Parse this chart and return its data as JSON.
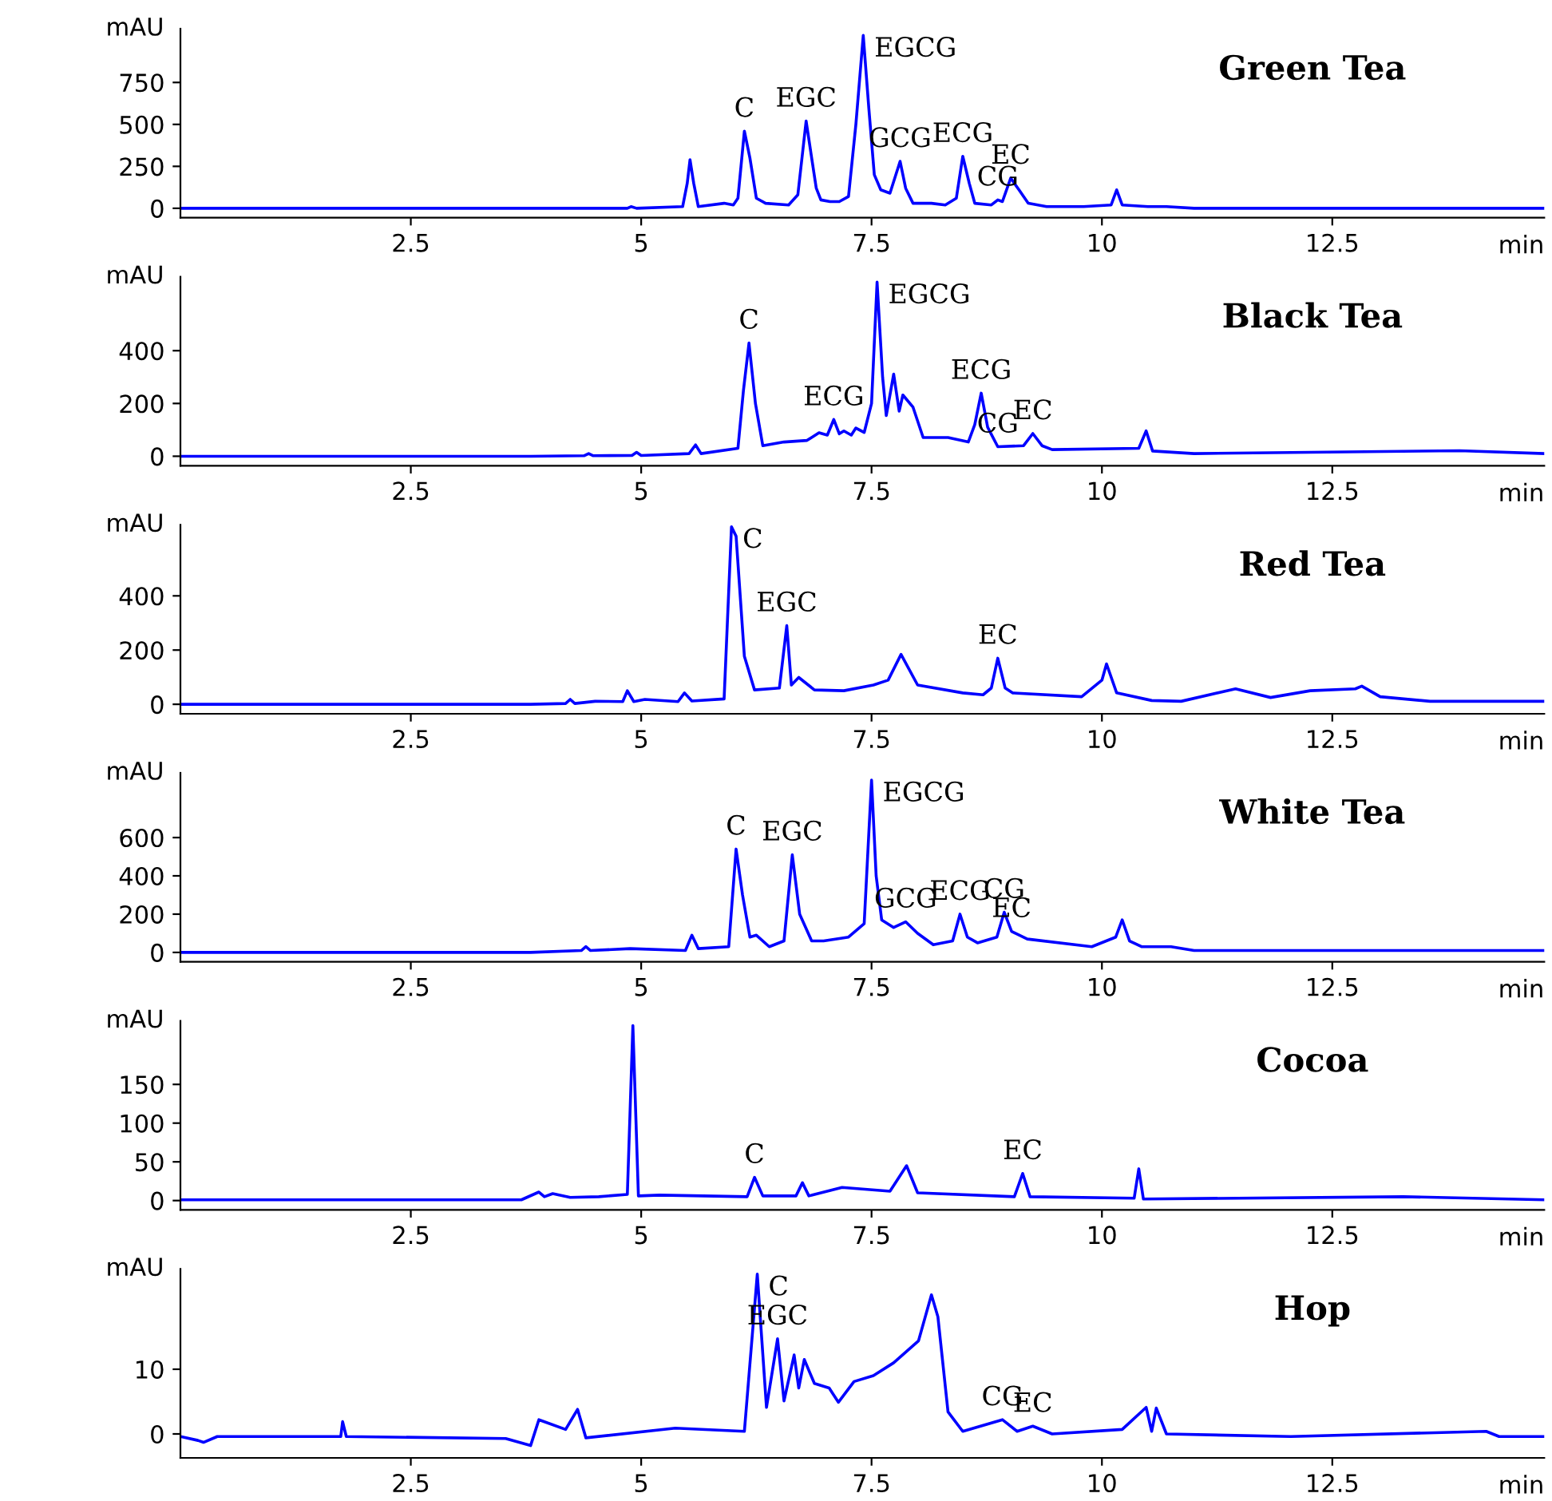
{
  "chart_data": [
    {
      "type": "line",
      "title": "Green Tea",
      "xlabel": "min",
      "ylabel": "mAU",
      "xlim": [
        0,
        14.8
      ],
      "xticks": [
        2.5,
        5,
        7.5,
        10,
        12.5
      ],
      "ylim": [
        -56,
        1070
      ],
      "yticks": [
        0,
        250,
        500,
        750
      ],
      "series": [
        {
          "color": "#0000ff",
          "x": [
            0,
            3.8,
            3.9,
            4.85,
            4.89,
            4.95,
            5.45,
            5.5,
            5.53,
            5.57,
            5.62,
            5.9,
            6.0,
            6.05,
            6.12,
            6.18,
            6.25,
            6.35,
            6.6,
            6.7,
            6.79,
            6.85,
            6.9,
            6.95,
            7.05,
            7.15,
            7.25,
            7.33,
            7.41,
            7.47,
            7.53,
            7.6,
            7.7,
            7.81,
            7.87,
            7.95,
            8.15,
            8.3,
            8.42,
            8.49,
            8.56,
            8.62,
            8.8,
            8.87,
            8.92,
            9.01,
            9.1,
            9.2,
            9.4,
            9.8,
            10.1,
            10.16,
            10.22,
            10.5,
            10.7,
            11,
            14.8
          ],
          "values": [
            0,
            0,
            0,
            0,
            10,
            0,
            10,
            150,
            290,
            150,
            10,
            30,
            20,
            60,
            460,
            300,
            60,
            30,
            20,
            80,
            520,
            300,
            120,
            50,
            40,
            40,
            70,
            500,
            1030,
            600,
            200,
            110,
            90,
            280,
            120,
            30,
            30,
            20,
            60,
            310,
            150,
            30,
            20,
            50,
            40,
            180,
            110,
            30,
            10,
            10,
            20,
            110,
            20,
            10,
            10,
            0,
            0
          ]
        }
      ],
      "annotations": [
        {
          "text": "C",
          "x": 6.12,
          "y": 460
        },
        {
          "text": "EGC",
          "x": 6.79,
          "y": 520
        },
        {
          "text": "EGCG",
          "x": 7.41,
          "y": 1030
        },
        {
          "text": "GCG",
          "x": 7.81,
          "y": 280
        },
        {
          "text": "ECG",
          "x": 8.49,
          "y": 310
        },
        {
          "text": "CG",
          "x": 8.87,
          "y": 50
        },
        {
          "text": "EC",
          "x": 9.01,
          "y": 180
        }
      ]
    },
    {
      "type": "line",
      "title": "Black Tea",
      "xlabel": "min",
      "ylabel": "mAU",
      "xlim": [
        0,
        14.8
      ],
      "xticks": [
        2.5,
        5,
        7.5,
        10,
        12.5
      ],
      "ylim": [
        -36,
        680
      ],
      "yticks": [
        0,
        200,
        400
      ],
      "series": [
        {
          "color": "#0000ff",
          "x": [
            0,
            3.8,
            4.38,
            4.43,
            4.48,
            4.9,
            4.95,
            5.0,
            5.52,
            5.59,
            5.65,
            6.05,
            6.11,
            6.17,
            6.24,
            6.32,
            6.55,
            6.8,
            6.93,
            7.02,
            7.09,
            7.15,
            7.2,
            7.28,
            7.33,
            7.42,
            7.5,
            7.56,
            7.62,
            7.66,
            7.74,
            7.8,
            7.84,
            7.95,
            8.06,
            8.33,
            8.55,
            8.62,
            8.69,
            8.76,
            8.87,
            9.15,
            9.25,
            9.35,
            9.46,
            10.4,
            10.48,
            10.55,
            11.0,
            13.88,
            14.8
          ],
          "values": [
            0,
            0,
            2,
            10,
            2,
            3,
            15,
            3,
            10,
            43,
            10,
            30,
            250,
            429,
            200,
            40,
            54,
            60,
            89,
            80,
            139,
            85,
            96,
            80,
            107,
            90,
            200,
            660,
            300,
            154,
            311,
            171,
            232,
            186,
            71,
            71,
            54,
            120,
            239,
            110,
            36,
            40,
            86,
            40,
            25,
            30,
            96,
            20,
            10,
            21,
            10
          ]
        }
      ],
      "annotations": [
        {
          "text": "C",
          "x": 6.17,
          "y": 429
        },
        {
          "text": "ECG",
          "x": 7.09,
          "y": 139
        },
        {
          "text": "EGCG",
          "x": 7.56,
          "y": 660
        },
        {
          "text": "ECG",
          "x": 8.69,
          "y": 239
        },
        {
          "text": "CG",
          "x": 8.87,
          "y": 36
        },
        {
          "text": "EC",
          "x": 9.25,
          "y": 86
        }
      ]
    },
    {
      "type": "line",
      "title": "Red Tea",
      "xlabel": "min",
      "ylabel": "mAU",
      "xlim": [
        0,
        14.8
      ],
      "xticks": [
        2.5,
        5,
        7.5,
        10,
        12.5
      ],
      "ylim": [
        -35,
        662
      ],
      "yticks": [
        0,
        200,
        400
      ],
      "series": [
        {
          "color": "#0000ff",
          "x": [
            0,
            3.8,
            4.18,
            4.23,
            4.28,
            4.5,
            4.8,
            4.85,
            4.92,
            5.04,
            5.4,
            5.47,
            5.55,
            5.9,
            5.98,
            6.03,
            6.12,
            6.23,
            6.5,
            6.58,
            6.63,
            6.71,
            6.88,
            7.2,
            7.52,
            7.68,
            7.82,
            8.0,
            8.49,
            8.71,
            8.8,
            8.87,
            8.95,
            9.03,
            9.78,
            10.0,
            10.05,
            10.16,
            10.54,
            10.86,
            11.45,
            11.83,
            12.26,
            12.75,
            12.82,
            13.02,
            13.56,
            14.8
          ],
          "values": [
            0,
            0,
            3,
            18,
            3,
            11,
            10,
            50,
            10,
            18,
            10,
            42,
            12,
            20,
            655,
            620,
            177,
            53,
            60,
            290,
            71,
            99,
            53,
            50,
            71,
            89,
            184,
            71,
            42,
            35,
            60,
            170,
            60,
            42,
            28,
            89,
            149,
            42,
            14,
            11,
            57,
            25,
            50,
            57,
            67,
            28,
            11,
            11
          ]
        }
      ],
      "annotations": [
        {
          "text": "C",
          "x": 5.98,
          "y": 655
        },
        {
          "text": "EGC",
          "x": 6.58,
          "y": 290
        },
        {
          "text": "EC",
          "x": 8.87,
          "y": 170
        }
      ]
    },
    {
      "type": "line",
      "title": "White Tea",
      "xlabel": "min",
      "ylabel": "mAU",
      "xlim": [
        0,
        14.8
      ],
      "xticks": [
        2.5,
        5,
        7.5,
        10,
        12.5
      ],
      "ylim": [
        -49,
        938
      ],
      "yticks": [
        0,
        200,
        400,
        600
      ],
      "series": [
        {
          "color": "#0000ff",
          "x": [
            0,
            3.8,
            4.35,
            4.4,
            4.45,
            4.88,
            5.48,
            5.55,
            5.62,
            5.95,
            6.03,
            6.1,
            6.18,
            6.25,
            6.39,
            6.55,
            6.64,
            6.72,
            6.85,
            6.98,
            7.25,
            7.42,
            7.5,
            7.55,
            7.61,
            7.74,
            7.87,
            8.0,
            8.17,
            8.38,
            8.46,
            8.54,
            8.65,
            8.86,
            8.94,
            9.02,
            9.19,
            9.89,
            10.15,
            10.22,
            10.3,
            10.43,
            10.75,
            11.0,
            14.8
          ],
          "values": [
            0,
            0,
            10,
            30,
            10,
            20,
            10,
            90,
            20,
            30,
            540,
            300,
            80,
            90,
            30,
            60,
            510,
            200,
            60,
            60,
            80,
            150,
            900,
            400,
            170,
            130,
            160,
            100,
            40,
            60,
            200,
            80,
            50,
            80,
            210,
            110,
            70,
            30,
            80,
            170,
            60,
            30,
            30,
            10,
            10
          ]
        }
      ],
      "annotations": [
        {
          "text": "C",
          "x": 6.03,
          "y": 540
        },
        {
          "text": "EGC",
          "x": 6.64,
          "y": 510
        },
        {
          "text": "EGCG",
          "x": 7.5,
          "y": 900
        },
        {
          "text": "GCG",
          "x": 7.87,
          "y": 160
        },
        {
          "text": "ECG",
          "x": 8.46,
          "y": 200
        },
        {
          "text": "CG",
          "x": 8.94,
          "y": 210
        },
        {
          "text": "EC",
          "x": 9.02,
          "y": 110
        }
      ]
    },
    {
      "type": "line",
      "title": "Cocoa",
      "xlabel": "min",
      "ylabel": "mAU",
      "xlim": [
        0,
        14.8
      ],
      "xticks": [
        2.5,
        5,
        7.5,
        10,
        12.5
      ],
      "ylim": [
        -12,
        232
      ],
      "yticks": [
        0,
        50,
        100,
        150
      ],
      "series": [
        {
          "color": "#0000ff",
          "x": [
            0,
            3.7,
            3.89,
            3.95,
            4.04,
            4.23,
            4.54,
            4.85,
            4.91,
            4.97,
            5.2,
            6.15,
            6.23,
            6.32,
            6.68,
            6.75,
            6.82,
            7.18,
            7.7,
            7.88,
            8.0,
            9.05,
            9.14,
            9.22,
            10.35,
            10.4,
            10.45,
            13.27,
            14.8
          ],
          "values": [
            1,
            1,
            11,
            5,
            9,
            4,
            5,
            8,
            226,
            6,
            7,
            5,
            30,
            6,
            6,
            23,
            6,
            17,
            12,
            45,
            10,
            5,
            35,
            5,
            3,
            41,
            2,
            5,
            1
          ]
        }
      ],
      "annotations": [
        {
          "text": "C",
          "x": 6.23,
          "y": 30
        },
        {
          "text": "EC",
          "x": 9.14,
          "y": 35
        }
      ]
    },
    {
      "type": "line",
      "title": "Hop",
      "xlabel": "min",
      "ylabel": "mAU",
      "xlim": [
        0,
        14.8
      ],
      "xticks": [
        2.5,
        5,
        7.5,
        10,
        12.5
      ],
      "ylim": [
        -3.7,
        25.5
      ],
      "yticks": [
        0,
        10
      ],
      "series": [
        {
          "color": "#0000ff",
          "x": [
            0,
            0.19,
            0.25,
            0.4,
            1.74,
            1.76,
            1.8,
            3.53,
            3.8,
            3.89,
            4.18,
            4.31,
            4.4,
            5.37,
            6.12,
            6.26,
            6.36,
            6.48,
            6.55,
            6.66,
            6.71,
            6.77,
            6.88,
            7.04,
            7.14,
            7.31,
            7.52,
            7.74,
            8.01,
            8.15,
            8.22,
            8.33,
            8.49,
            8.92,
            9.08,
            9.25,
            9.46,
            10.22,
            10.48,
            10.54,
            10.59,
            10.7,
            12.05,
            14.17,
            14.31,
            14.8
          ],
          "values": [
            -0.4,
            -1,
            -1.3,
            -0.4,
            -0.4,
            1.9,
            -0.4,
            -0.7,
            -1.8,
            2.2,
            0.7,
            3.8,
            -0.6,
            0.9,
            0.4,
            24.7,
            4.1,
            14.7,
            5.1,
            12.2,
            7.1,
            11.5,
            7.8,
            7.1,
            4.9,
            8.1,
            9.0,
            11.0,
            14.4,
            21.5,
            18.1,
            3.4,
            0.4,
            2.2,
            0.4,
            1.2,
            0,
            0.7,
            4.1,
            0.4,
            4.0,
            0,
            -0.4,
            0.4,
            -0.4,
            -0.4
          ]
        }
      ],
      "annotations": [
        {
          "text": "C",
          "x": 6.26,
          "y": 24.7
        },
        {
          "text": "EGC",
          "x": 6.48,
          "y": 14.7
        },
        {
          "text": "CG",
          "x": 8.92,
          "y": 2.2
        },
        {
          "text": "EC",
          "x": 9.25,
          "y": 1.2
        }
      ]
    }
  ]
}
